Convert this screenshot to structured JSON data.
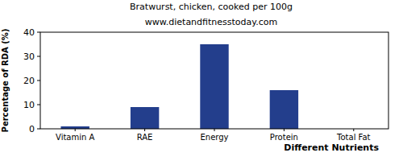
{
  "chart_data": {
    "type": "bar",
    "title": "Bratwurst, chicken, cooked per 100g",
    "subtitle": "www.dietandfitnesstoday.com",
    "x_label": "Different Nutrients",
    "y_label": "Percentage of RDA (%)",
    "categories": [
      "Vitamin A",
      "RAE",
      "Energy",
      "Protein",
      "Total Fat"
    ],
    "values": [
      1,
      9,
      35,
      16,
      0
    ],
    "color": "#233e8c",
    "ylim": [
      0,
      40
    ],
    "yticks": [
      0,
      10,
      20,
      30,
      40
    ],
    "grid": false
  }
}
